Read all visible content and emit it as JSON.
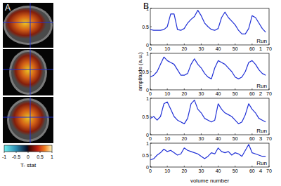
{
  "panel_labels": [
    "A",
    "B"
  ],
  "colorbar": {
    "label": "T- stat",
    "range": [
      -1,
      1
    ],
    "ticks": [
      -1,
      -0.5,
      0,
      0.5,
      1
    ]
  },
  "chart_data": [
    {
      "type": "line",
      "x": [
        0,
        2,
        4,
        6,
        8,
        10,
        12,
        14,
        16,
        18,
        20,
        22,
        24,
        26,
        28,
        30,
        32,
        34,
        36,
        38,
        40,
        42,
        44,
        46,
        48,
        50,
        52,
        54,
        56,
        58,
        60,
        62,
        64,
        66,
        68
      ],
      "series": [
        {
          "color": "#1f2fd6",
          "values": [
            0.42,
            0.4,
            0.4,
            0.4,
            0.42,
            0.5,
            0.85,
            0.85,
            0.42,
            0.4,
            0.45,
            0.6,
            0.7,
            0.78,
            0.95,
            0.8,
            0.6,
            0.5,
            0.42,
            0.4,
            0.45,
            0.75,
            0.9,
            0.75,
            0.65,
            0.55,
            0.4,
            0.3,
            0.3,
            0.45,
            0.8,
            0.75,
            0.6,
            0.45,
            0.35
          ]
        }
      ],
      "xlim": [
        0,
        70
      ],
      "xticks": [
        0,
        10,
        20,
        30,
        40,
        50,
        60,
        70
      ],
      "ylim": [
        0,
        1
      ],
      "yticks": [
        0,
        0.5,
        1
      ],
      "annotations": [
        "Run",
        "1"
      ]
    },
    {
      "type": "line",
      "x": [
        0,
        2,
        4,
        6,
        8,
        10,
        12,
        14,
        16,
        18,
        20,
        22,
        24,
        26,
        28,
        30,
        32,
        34,
        36,
        38,
        40,
        42,
        44,
        46,
        48,
        50,
        52,
        54,
        56,
        58,
        60,
        62,
        64,
        66,
        68
      ],
      "series": [
        {
          "color": "#1f2fd6",
          "values": [
            0.35,
            0.4,
            0.5,
            0.7,
            0.9,
            0.8,
            0.75,
            0.7,
            0.55,
            0.4,
            0.4,
            0.45,
            0.7,
            0.85,
            0.7,
            0.6,
            0.45,
            0.35,
            0.3,
            0.6,
            0.8,
            0.75,
            0.7,
            0.6,
            0.5,
            0.35,
            0.3,
            0.35,
            0.5,
            0.75,
            0.8,
            0.7,
            0.55,
            0.45,
            0.4
          ]
        }
      ],
      "xlim": [
        0,
        70
      ],
      "xticks": [
        0,
        10,
        20,
        30,
        40,
        50,
        60,
        70
      ],
      "ylim": [
        0,
        1
      ],
      "yticks": [
        0,
        0.5,
        1
      ],
      "y_label": "amplitude (a.u.)",
      "annotations": [
        "Run",
        "2"
      ]
    },
    {
      "type": "line",
      "x": [
        0,
        2,
        4,
        6,
        8,
        10,
        12,
        14,
        16,
        18,
        20,
        22,
        24,
        26,
        28,
        30,
        32,
        34,
        36,
        38,
        40,
        42,
        44,
        46,
        48,
        50,
        52,
        54,
        56,
        58,
        60,
        62,
        64,
        66,
        68
      ],
      "series": [
        {
          "color": "#1f2fd6",
          "values": [
            0.45,
            0.5,
            0.4,
            0.5,
            0.85,
            0.9,
            0.7,
            0.5,
            0.4,
            0.35,
            0.3,
            0.45,
            0.85,
            0.95,
            0.7,
            0.6,
            0.45,
            0.4,
            0.35,
            0.4,
            0.85,
            0.7,
            0.6,
            0.55,
            0.5,
            0.4,
            0.3,
            0.35,
            0.55,
            0.85,
            0.7,
            0.6,
            0.45,
            0.4,
            0.35
          ]
        }
      ],
      "xlim": [
        0,
        70
      ],
      "xticks": [
        0,
        10,
        20,
        30,
        40,
        50,
        60,
        70
      ],
      "ylim": [
        0,
        1
      ],
      "yticks": [
        0,
        0.5,
        1
      ],
      "annotations": [
        "Run",
        "3"
      ]
    },
    {
      "type": "line",
      "x": [
        0,
        2,
        4,
        6,
        8,
        10,
        12,
        14,
        16,
        18,
        20,
        22,
        24,
        26,
        28,
        30,
        32,
        34,
        36,
        38,
        40,
        42,
        44,
        46,
        48,
        50,
        52,
        54,
        56,
        58,
        60,
        62,
        64,
        66,
        68
      ],
      "series": [
        {
          "color": "#1f2fd6",
          "values": [
            0.3,
            0.35,
            0.5,
            0.6,
            0.75,
            0.65,
            0.7,
            0.6,
            0.5,
            0.55,
            0.8,
            0.7,
            0.65,
            0.6,
            0.55,
            0.45,
            0.35,
            0.45,
            0.6,
            0.55,
            0.8,
            0.65,
            0.6,
            0.65,
            0.5,
            0.6,
            0.55,
            0.45,
            0.7,
            0.95,
            0.6,
            0.55,
            0.5,
            0.45,
            0.45
          ]
        }
      ],
      "xlim": [
        0,
        70
      ],
      "xticks": [
        0,
        10,
        20,
        30,
        40,
        50,
        60,
        70
      ],
      "ylim": [
        0,
        1
      ],
      "yticks": [
        0,
        0.5,
        1
      ],
      "x_label": "volume number",
      "annotations": [
        "Run",
        "4"
      ]
    }
  ]
}
